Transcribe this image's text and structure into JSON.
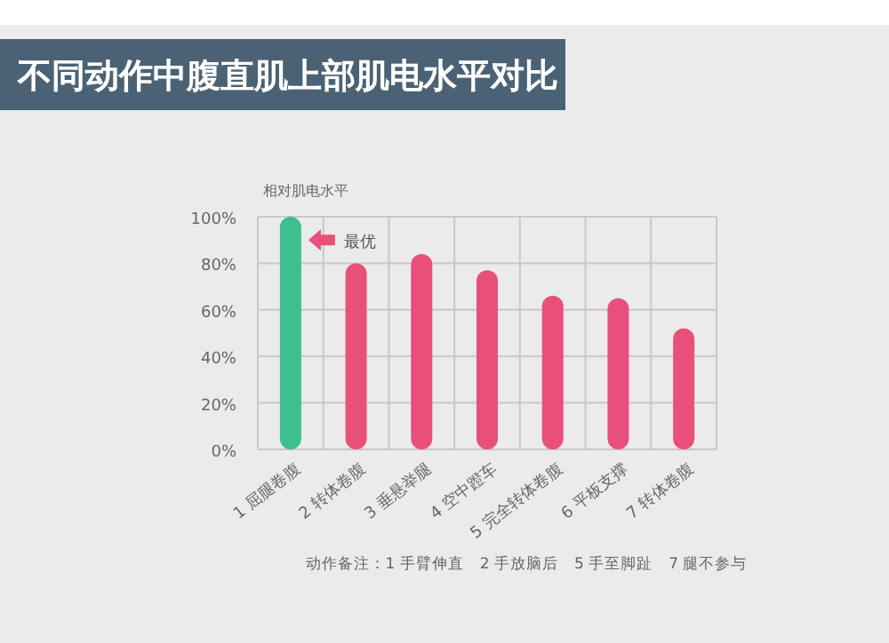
{
  "chart_data": {
    "type": "bar",
    "title": "不同动作中腹直肌上部肌电水平对比",
    "ylabel": "相对肌电水平",
    "categories": [
      "1 屈腿卷腹",
      "2 转体卷腹",
      "3 垂悬举腿",
      "4 空中蹬车",
      "5 完全转体卷腹",
      "6 平板支撑",
      "7 转体卷腹"
    ],
    "values": [
      100,
      80,
      84,
      77,
      66,
      65,
      52
    ],
    "colors": [
      "#3dbf8e",
      "#e8507a",
      "#e8507a",
      "#e8507a",
      "#e8507a",
      "#e8507a",
      "#e8507a"
    ],
    "ylim": [
      0,
      100
    ],
    "yticks": [
      {
        "value": 0,
        "label": "0%"
      },
      {
        "value": 20,
        "label": "20%"
      },
      {
        "value": 40,
        "label": "40%"
      },
      {
        "value": 60,
        "label": "60%"
      },
      {
        "value": 80,
        "label": "80%"
      },
      {
        "value": 100,
        "label": "100%"
      }
    ],
    "grid": true,
    "annotations": [
      {
        "text": "最优",
        "x": "1 屈腿卷腹",
        "y": 90
      },
      "动作备注：1 手臂伸直　2 手放脑后　5 手至脚趾　7 腿不参与"
    ]
  }
}
